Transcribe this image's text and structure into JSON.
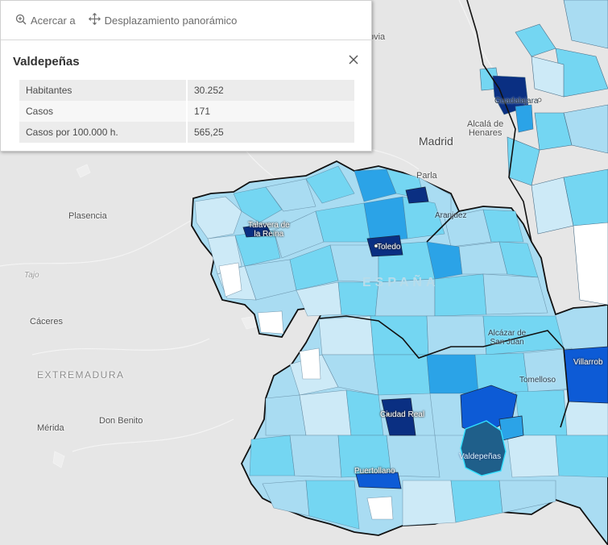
{
  "map": {
    "places": {
      "segovia": "ovia",
      "madrid": "Madrid",
      "alcala": [
        "Alcalá de",
        "Henares"
      ],
      "guadalajara": "Guadalajara",
      "parla": "Parla",
      "aranjuez": "Aranjuez",
      "plasencia": "Plasencia",
      "trujillo": "Tajo",
      "caceres": "Cáceres",
      "extremadura": "EXTREMADURA",
      "merida": "Mérida",
      "don_benito": "Don Benito",
      "talavera": [
        "Talavera de",
        "la Reina"
      ],
      "toledo": "Toledo",
      "espana": "ESPAÑA",
      "alcazar": [
        "Alcázar de",
        "San Juan"
      ],
      "tomelloso": "Tomelloso",
      "villarrobledo": "Villarrob",
      "ciudad_real": "Ciudad Real",
      "valdepenas": "Valdepeñas",
      "puertollano": "Puertollano"
    },
    "colors": {
      "background": "#e6e6e6",
      "boundary": "#111111",
      "class_1": "#cdeaf7",
      "class_2": "#a9dcf2",
      "class_3": "#74d6f2",
      "class_4": "#2ba3e7",
      "class_5": "#0d5bd6",
      "class_6": "#0a2f82",
      "selected": "#1f5f8a"
    }
  },
  "popup": {
    "actions": [
      {
        "label": "Acercar a",
        "icon": "zoom-in-icon"
      },
      {
        "label": "Desplazamiento panorámico",
        "icon": "pan-icon"
      }
    ],
    "title": "Valdepeñas",
    "close_icon": "close-icon",
    "rows": [
      {
        "key": "Habitantes",
        "value": "30.252"
      },
      {
        "key": "Casos",
        "value": "171"
      },
      {
        "key": "Casos por 100.000 h.",
        "value": "565,25"
      }
    ]
  }
}
